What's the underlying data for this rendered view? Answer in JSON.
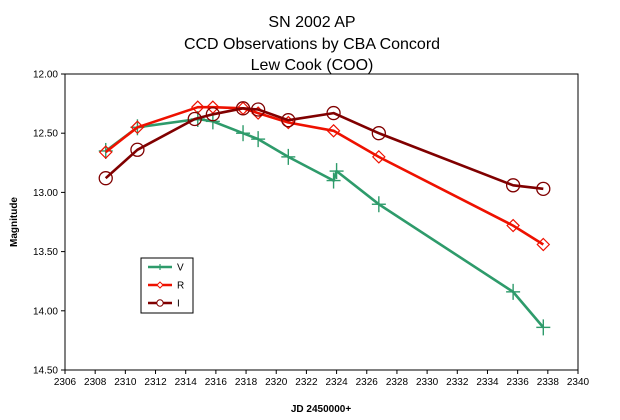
{
  "chart_data": {
    "type": "line",
    "title": [
      "SN 2002 AP",
      "CCD Observations by CBA Concord",
      "Lew Cook (COO)"
    ],
    "xlabel": "JD 2450000+",
    "ylabel": "Magnitude",
    "xlim": [
      2306,
      2340
    ],
    "ylim": [
      12.0,
      14.5
    ],
    "y_inverted": true,
    "xticks": [
      "2306",
      "2308",
      "2310",
      "2312",
      "2314",
      "2316",
      "2318",
      "2320",
      "2322",
      "2324",
      "2326",
      "2328",
      "2330",
      "2332",
      "2334",
      "2336",
      "2338",
      "2340"
    ],
    "yticks": [
      "12.00",
      "12.50",
      "13.00",
      "13.50",
      "14.00",
      "14.50"
    ],
    "grid": false,
    "legend_position": "lower-left",
    "series": [
      {
        "name": "V",
        "color": "#2e9b6b",
        "marker": "plus",
        "x": [
          2308.7,
          2310.8,
          2314.8,
          2315.8,
          2317.8,
          2318.8,
          2320.8,
          2323.8,
          2324.0,
          2326.8,
          2335.7,
          2337.7
        ],
        "y": [
          12.65,
          12.45,
          12.38,
          12.4,
          12.5,
          12.55,
          12.7,
          12.9,
          12.82,
          13.1,
          13.84,
          14.14
        ]
      },
      {
        "name": "R",
        "color": "#ee1100",
        "marker": "diamond",
        "x": [
          2308.7,
          2310.8,
          2314.8,
          2315.8,
          2317.8,
          2318.8,
          2320.8,
          2323.8,
          2326.8,
          2335.7,
          2337.7
        ],
        "y": [
          12.66,
          12.45,
          12.28,
          12.28,
          12.29,
          12.33,
          12.41,
          12.48,
          12.7,
          13.28,
          13.44
        ]
      },
      {
        "name": "I",
        "color": "#800000",
        "marker": "circle",
        "x": [
          2308.7,
          2310.8,
          2314.6,
          2315.8,
          2317.8,
          2318.8,
          2320.8,
          2323.8,
          2326.8,
          2335.7,
          2337.7
        ],
        "y": [
          12.88,
          12.64,
          12.38,
          12.34,
          12.29,
          12.3,
          12.39,
          12.33,
          12.5,
          12.94,
          12.97
        ]
      }
    ]
  }
}
